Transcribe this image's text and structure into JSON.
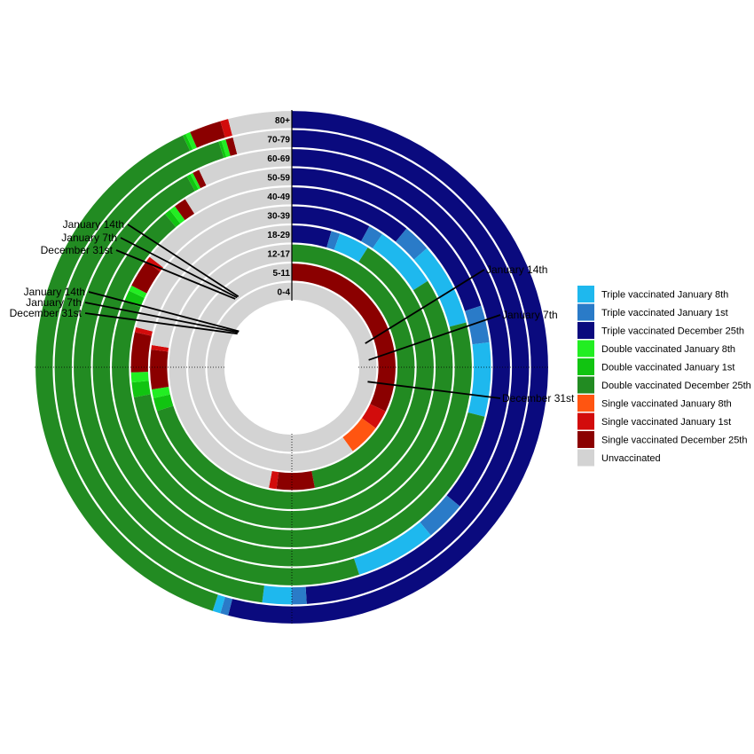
{
  "chart_data": {
    "type": "radial-stacked-bar",
    "title": "",
    "xlabel": "",
    "ylabel": "",
    "value_unit": "fraction of age group",
    "colors": {
      "triple_jan8": "#1EB8EE",
      "triple_jan1": "#2A7BC8",
      "triple_dec25": "#0A0A7E",
      "double_jan8": "#22EE22",
      "double_jan1": "#11C411",
      "double_dec25": "#228B22",
      "single_jan8": "#FF5511",
      "single_jan1": "#D20C0C",
      "single_dec25": "#8B0000",
      "unvaccinated": "#D3D3D3"
    },
    "legend": [
      {
        "key": "triple_jan8",
        "label": "Triple vaccinated January 8th"
      },
      {
        "key": "triple_jan1",
        "label": "Triple vaccinated January 1st"
      },
      {
        "key": "triple_dec25",
        "label": "Triple vaccinated December 25th"
      },
      {
        "key": "double_jan8",
        "label": "Double vaccinated January 8th"
      },
      {
        "key": "double_jan1",
        "label": "Double vaccinated January 1st"
      },
      {
        "key": "double_dec25",
        "label": "Double vaccinated December 25th"
      },
      {
        "key": "single_jan8",
        "label": "Single vaccinated January 8th"
      },
      {
        "key": "single_jan1",
        "label": "Single vaccinated January 1st"
      },
      {
        "key": "single_dec25",
        "label": "Single vaccinated December 25th"
      },
      {
        "key": "unvaccinated",
        "label": "Unvaccinated"
      }
    ],
    "legend_position": "right",
    "stack_order": [
      "triple_dec25",
      "triple_jan1",
      "triple_jan8",
      "double_dec25",
      "double_jan1",
      "double_jan8",
      "single_dec25",
      "single_jan1",
      "single_jan8",
      "unvaccinated"
    ],
    "age_groups": [
      {
        "label": "0-4",
        "values": {
          "triple_dec25": 0,
          "triple_jan1": 0,
          "triple_jan8": 0,
          "double_dec25": 0,
          "double_jan1": 0,
          "double_jan8": 0,
          "single_dec25": 0,
          "single_jan1": 0,
          "single_jan8": 0,
          "unvaccinated": 1.0
        }
      },
      {
        "label": "5-11",
        "values": {
          "triple_dec25": 0,
          "triple_jan1": 0,
          "triple_jan8": 0,
          "double_dec25": 0,
          "double_jan1": 0,
          "double_jan8": 0,
          "single_dec25": 0.32,
          "single_jan1": 0.03,
          "single_jan8": 0.05,
          "unvaccinated": 0.6
        }
      },
      {
        "label": "12-17",
        "values": {
          "triple_dec25": 0,
          "triple_jan1": 0,
          "triple_jan8": 0,
          "double_dec25": 0.47,
          "double_jan1": 0,
          "double_jan8": 0,
          "single_dec25": 0.05,
          "single_jan1": 0.01,
          "single_jan8": 0,
          "unvaccinated": 0.47
        }
      },
      {
        "label": "18-29",
        "values": {
          "triple_dec25": 0.045,
          "triple_jan1": 0.01,
          "triple_jan8": 0.035,
          "double_dec25": 0.61,
          "double_jan1": 0.015,
          "double_jan8": 0.01,
          "single_dec25": 0.045,
          "single_jan1": 0.005,
          "single_jan8": 0,
          "unvaccinated": 0.225
        }
      },
      {
        "label": "30-39",
        "values": {
          "triple_dec25": 0.08,
          "triple_jan1": 0.015,
          "triple_jan8": 0.065,
          "double_dec25": 0.56,
          "double_jan1": 0.015,
          "double_jan8": 0.01,
          "single_dec25": 0.04,
          "single_jan1": 0.005,
          "single_jan8": 0,
          "unvaccinated": 0.21
        }
      },
      {
        "label": "40-49",
        "values": {
          "triple_dec25": 0.11,
          "triple_jan1": 0.025,
          "triple_jan8": 0.075,
          "double_dec25": 0.6,
          "double_jan1": 0.01,
          "double_jan8": 0.005,
          "single_dec25": 0.025,
          "single_jan1": 0.005,
          "single_jan8": 0,
          "unvaccinated": 0.145
        }
      },
      {
        "label": "50-59",
        "values": {
          "triple_dec25": 0.2,
          "triple_jan1": 0.03,
          "triple_jan8": 0.06,
          "double_dec25": 0.6,
          "double_jan1": 0.005,
          "double_jan8": 0.005,
          "single_dec25": 0.01,
          "single_jan1": 0,
          "single_jan8": 0,
          "unvaccinated": 0.09
        }
      },
      {
        "label": "60-69",
        "values": {
          "triple_dec25": 0.36,
          "triple_jan1": 0.03,
          "triple_jan8": 0.06,
          "double_dec25": 0.47,
          "double_jan1": 0.003,
          "double_jan8": 0.002,
          "single_dec25": 0.005,
          "single_jan1": 0,
          "single_jan8": 0,
          "unvaccinated": 0.07
        }
      },
      {
        "label": "70-79",
        "values": {
          "triple_dec25": 0.49,
          "triple_jan1": 0.01,
          "triple_jan8": 0.02,
          "double_dec25": 0.43,
          "double_jan1": 0.002,
          "double_jan8": 0.003,
          "single_dec25": 0.005,
          "single_jan1": 0,
          "single_jan8": 0,
          "unvaccinated": 0.04
        }
      },
      {
        "label": "80+",
        "values": {
          "triple_dec25": 0.54,
          "triple_jan1": 0.005,
          "triple_jan8": 0.005,
          "double_dec25": 0.38,
          "double_jan1": 0.002,
          "double_jan8": 0.003,
          "single_dec25": 0.02,
          "single_jan1": 0.005,
          "single_jan8": 0,
          "unvaccinated": 0.04
        }
      }
    ],
    "annotations": [
      {
        "text": "January 14th",
        "side": "left-lower",
        "value": 0.845
      },
      {
        "text": "January 7th",
        "side": "left-lower",
        "value": 0.842
      },
      {
        "text": "December 31st",
        "side": "left-lower",
        "value": 0.838
      },
      {
        "text": "January 14th",
        "side": "left-upper",
        "value": 0.897
      },
      {
        "text": "January 7th",
        "side": "left-upper",
        "value": 0.894
      },
      {
        "text": "December 31st",
        "side": "left-upper",
        "value": 0.89
      },
      {
        "text": "January 14th",
        "side": "right",
        "value": 0.2
      },
      {
        "text": "January 7th",
        "side": "right",
        "value": 0.235
      },
      {
        "text": "December 31st",
        "side": "right",
        "value": 0.28
      }
    ]
  }
}
